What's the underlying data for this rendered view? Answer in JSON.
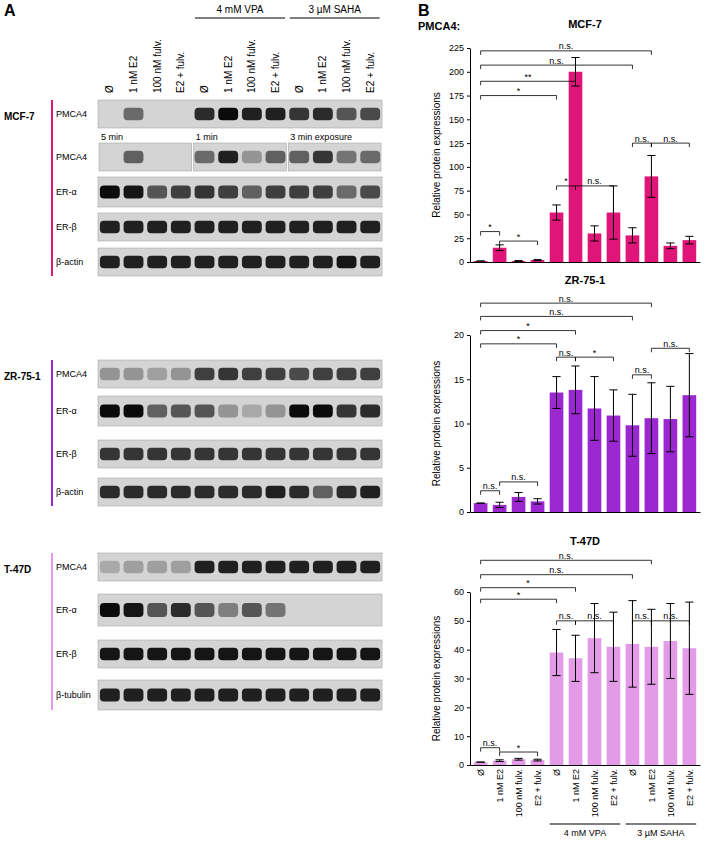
{
  "panel_a": {
    "label": "A",
    "lanes": [
      "Ø",
      "1 nM E2",
      "100 nM fulv.",
      "E2 + fulv.",
      "Ø",
      "1 nM E2",
      "100 nM fulv.",
      "E2 + fulv.",
      "Ø",
      "1 nM E2",
      "100 nM fulv.",
      "E2 + fulv."
    ],
    "groups": [
      {
        "label": "4 mM VPA",
        "from": 4,
        "to": 7
      },
      {
        "label": "3 µM SAHA",
        "from": 8,
        "to": 11
      }
    ],
    "cell_lines": [
      {
        "name": "MCF-7",
        "color": "#e0157a",
        "blots": [
          {
            "label": "PMCA4",
            "bands": [
              0,
              0.5,
              0,
              0,
              0.8,
              0.95,
              0.85,
              0.85,
              0.75,
              0.8,
              0.6,
              0.65
            ]
          },
          {
            "label": "PMCA4",
            "bands": [
              0,
              0.55,
              0,
              0,
              0.5,
              0.85,
              0.3,
              0.55,
              0.55,
              0.75,
              0.45,
              0.5
            ],
            "segments": [
              {
                "label": "5 min",
                "from": 0,
                "to": 3
              },
              {
                "label": "1 min",
                "from": 4,
                "to": 7
              },
              {
                "label": "3 min exposure",
                "from": 8,
                "to": 11
              }
            ]
          },
          {
            "label": "ER-α",
            "bands": [
              0.95,
              0.9,
              0.6,
              0.7,
              0.75,
              0.7,
              0.55,
              0.7,
              0.7,
              0.7,
              0.5,
              0.65
            ]
          },
          {
            "label": "ER-β",
            "bands": [
              0.85,
              0.85,
              0.85,
              0.85,
              0.85,
              0.85,
              0.85,
              0.85,
              0.85,
              0.85,
              0.85,
              0.85
            ]
          },
          {
            "label": "β-actin",
            "bands": [
              0.85,
              0.85,
              0.85,
              0.85,
              0.85,
              0.85,
              0.85,
              0.85,
              0.85,
              0.85,
              0.9,
              0.85
            ]
          }
        ]
      },
      {
        "name": "ZR-75-1",
        "color": "#9b27d0",
        "blots": [
          {
            "label": "PMCA4",
            "bands": [
              0.3,
              0.3,
              0.25,
              0.3,
              0.7,
              0.75,
              0.7,
              0.7,
              0.65,
              0.7,
              0.7,
              0.7
            ]
          },
          {
            "label": "ER-α",
            "bands": [
              0.95,
              0.95,
              0.55,
              0.6,
              0.6,
              0.3,
              0.2,
              0.3,
              0.95,
              0.95,
              0.75,
              0.8
            ]
          },
          {
            "label": "ER-β",
            "bands": [
              0.75,
              0.75,
              0.75,
              0.75,
              0.75,
              0.75,
              0.75,
              0.75,
              0.75,
              0.75,
              0.75,
              0.75
            ]
          },
          {
            "label": "β-actin",
            "bands": [
              0.8,
              0.8,
              0.8,
              0.8,
              0.8,
              0.8,
              0.8,
              0.85,
              0.8,
              0.55,
              0.8,
              0.85
            ]
          }
        ]
      },
      {
        "name": "T-47D",
        "color": "#e39be8",
        "blots": [
          {
            "label": "PMCA4",
            "bands": [
              0.2,
              0.25,
              0.25,
              0.25,
              0.85,
              0.85,
              0.85,
              0.85,
              0.85,
              0.85,
              0.85,
              0.85
            ]
          },
          {
            "label": "ER-α",
            "bands": [
              0.95,
              0.9,
              0.6,
              0.8,
              0.6,
              0.4,
              0.6,
              0.45,
              0,
              0,
              0,
              0
            ]
          },
          {
            "label": "ER-β",
            "bands": [
              0.9,
              0.9,
              0.9,
              0.9,
              0.9,
              0.9,
              0.9,
              0.9,
              0.9,
              0.9,
              0.9,
              0.9
            ]
          },
          {
            "label": "β-tubulin",
            "bands": [
              0.85,
              0.85,
              0.85,
              0.85,
              0.85,
              0.85,
              0.85,
              0.85,
              0.85,
              0.85,
              0.85,
              0.85
            ]
          }
        ]
      }
    ]
  },
  "panel_b": {
    "label": "B",
    "heading": "PMCA4:"
  },
  "chart_data": [
    {
      "type": "bar",
      "title": "MCF-7",
      "y_label": "Relative protein expressions",
      "categories": [
        "Ø",
        "1 nM E2",
        "100 nM fulv.",
        "E2 + fulv.",
        "Ø",
        "1 nM E2",
        "100 nM fulv.",
        "E2 + fulv.",
        "Ø",
        "1 nM E2",
        "100 nM fulv.",
        "E2 + fulv."
      ],
      "values": [
        1,
        15,
        1,
        2,
        52,
        200,
        30,
        52,
        28,
        90,
        17,
        23
      ],
      "errors": [
        0,
        3,
        0.5,
        0.5,
        8,
        15,
        8,
        28,
        8,
        22,
        3,
        4
      ],
      "color": "#e0157a",
      "ylim": [
        0,
        225
      ],
      "yticks": [
        0,
        25,
        50,
        75,
        100,
        125,
        150,
        175,
        200,
        225
      ],
      "tick_labels": "y",
      "annotations": [
        {
          "text": "n.s.",
          "from": 0,
          "to": 9,
          "y": 222
        },
        {
          "text": "n.s.",
          "from": 0,
          "to": 8,
          "y": 207
        },
        {
          "text": "**",
          "from": 0,
          "to": 5,
          "y": 190
        },
        {
          "text": "*",
          "from": 0,
          "to": 4,
          "y": 175
        },
        {
          "text": "*",
          "from": 0,
          "to": 1,
          "y": 32
        },
        {
          "text": "*",
          "from": 1,
          "to": 3,
          "y": 22
        },
        {
          "text": "*",
          "from": 4,
          "to": 5,
          "y": 80
        },
        {
          "text": "n.s.",
          "from": 5,
          "to": 7,
          "y": 80
        },
        {
          "text": "n.s.",
          "from": 8,
          "to": 9,
          "y": 125
        },
        {
          "text": "n.s.",
          "from": 9,
          "to": 11,
          "y": 125
        }
      ]
    },
    {
      "type": "bar",
      "title": "ZR-75-1",
      "y_label": "Relative protein expressions",
      "categories": [
        "Ø",
        "1 nM E2",
        "100 nM fulv.",
        "E2 + fulv.",
        "Ø",
        "1 nM E2",
        "100 nM fulv.",
        "E2 + fulv.",
        "Ø",
        "1 nM E2",
        "100 nM fulv.",
        "E2 + fulv."
      ],
      "values": [
        1,
        0.8,
        1.7,
        1.2,
        13.5,
        13.8,
        11.7,
        10.9,
        9.8,
        10.6,
        10.5,
        13.2
      ],
      "errors": [
        0,
        0.3,
        0.5,
        0.3,
        1.8,
        2.7,
        3.6,
        2.9,
        3.5,
        4,
        3.7,
        4.7
      ],
      "color": "#9b27d0",
      "ylim": [
        0,
        20
      ],
      "yticks": [
        0,
        5,
        10,
        15,
        20
      ],
      "tick_labels": "y",
      "annotations": [
        {
          "text": "n.s.",
          "from": 0,
          "to": 9,
          "y": 23.6
        },
        {
          "text": "n.s.",
          "from": 0,
          "to": 8,
          "y": 22.1
        },
        {
          "text": "*",
          "from": 0,
          "to": 5,
          "y": 20.5
        },
        {
          "text": "*",
          "from": 0,
          "to": 4,
          "y": 19
        },
        {
          "text": "n.s.",
          "from": 0,
          "to": 1,
          "y": 2.4
        },
        {
          "text": "n.s.",
          "from": 1,
          "to": 3,
          "y": 3.4
        },
        {
          "text": "n.s.",
          "from": 4,
          "to": 5,
          "y": 17.5
        },
        {
          "text": "*",
          "from": 5,
          "to": 7,
          "y": 17.5
        },
        {
          "text": "n.s.",
          "from": 8,
          "to": 9,
          "y": 15.5
        },
        {
          "text": "n.s.",
          "from": 9,
          "to": 11,
          "y": 18.5
        }
      ]
    },
    {
      "type": "bar",
      "title": "T-47D",
      "y_label": "Relative protein expressions",
      "categories": [
        "Ø",
        "1 nM E2",
        "100 nM fulv.",
        "E2 + fulv.",
        "Ø",
        "1 nM E2",
        "100 nM fulv.",
        "E2 + fulv.",
        "Ø",
        "1 nM E2",
        "100 nM fulv.",
        "E2 + fulv."
      ],
      "values": [
        1,
        1.5,
        2,
        1.7,
        39,
        37,
        44,
        41,
        42,
        41,
        43,
        40.5
      ],
      "errors": [
        0,
        0.3,
        0.3,
        0.3,
        8,
        8,
        12,
        12,
        15,
        13,
        13,
        16
      ],
      "color": "#e39be8",
      "ylim": [
        0,
        60
      ],
      "yticks": [
        0,
        10,
        20,
        30,
        40,
        50,
        60
      ],
      "x_groups": [
        {
          "label": "4 mM VPA",
          "from": 4,
          "to": 7
        },
        {
          "label": "3 µM SAHA",
          "from": 8,
          "to": 11
        }
      ],
      "annotations": [
        {
          "text": "n.s.",
          "from": 0,
          "to": 9,
          "y": 71
        },
        {
          "text": "n.s.",
          "from": 0,
          "to": 8,
          "y": 66
        },
        {
          "text": "*",
          "from": 0,
          "to": 5,
          "y": 61.5
        },
        {
          "text": "*",
          "from": 0,
          "to": 4,
          "y": 57.5
        },
        {
          "text": "n.s.",
          "from": 0,
          "to": 1,
          "y": 6
        },
        {
          "text": "*",
          "from": 1,
          "to": 3,
          "y": 4.5
        },
        {
          "text": "n.s.",
          "from": 4,
          "to": 5,
          "y": 50
        },
        {
          "text": "n.s.",
          "from": 5,
          "to": 7,
          "y": 50
        },
        {
          "text": "n.s.",
          "from": 8,
          "to": 9,
          "y": 50
        },
        {
          "text": "n.s.",
          "from": 9,
          "to": 11,
          "y": 50
        }
      ]
    }
  ]
}
